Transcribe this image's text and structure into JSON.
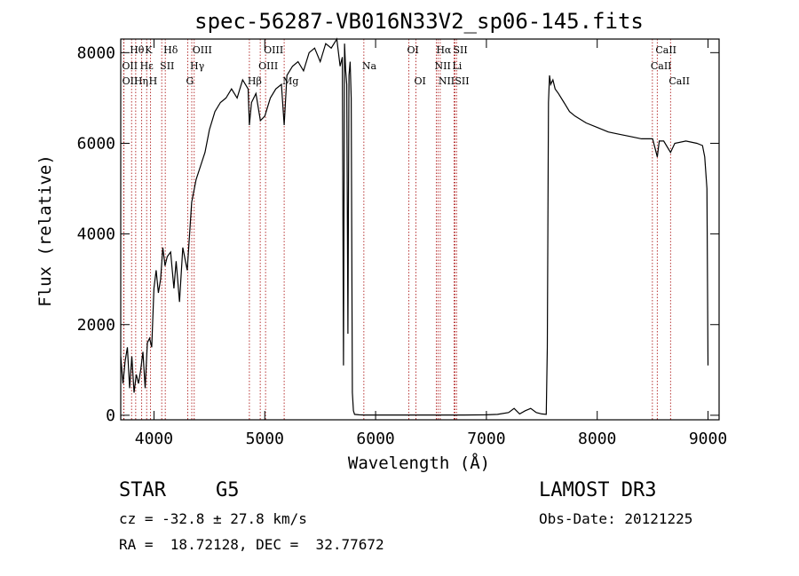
{
  "chart_data": {
    "type": "line",
    "title": "spec-56287-VB016N33V2_sp06-145.fits",
    "xlabel": "Wavelength (Å)",
    "ylabel": "Flux (relative)",
    "xlim": [
      3700,
      9100
    ],
    "ylim": [
      -100,
      8300
    ],
    "xticks": [
      4000,
      5000,
      6000,
      7000,
      8000,
      9000
    ],
    "yticks": [
      0,
      2000,
      4000,
      6000,
      8000
    ],
    "series": [
      {
        "name": "flux",
        "x": [
          3700,
          3720,
          3740,
          3760,
          3780,
          3800,
          3820,
          3840,
          3860,
          3880,
          3900,
          3920,
          3940,
          3960,
          3980,
          4000,
          4020,
          4040,
          4060,
          4080,
          4100,
          4120,
          4150,
          4180,
          4200,
          4230,
          4260,
          4300,
          4340,
          4380,
          4420,
          4460,
          4500,
          4550,
          4600,
          4650,
          4700,
          4750,
          4800,
          4850,
          4861,
          4880,
          4920,
          4960,
          5000,
          5050,
          5100,
          5150,
          5175,
          5200,
          5250,
          5300,
          5350,
          5400,
          5450,
          5500,
          5550,
          5600,
          5650,
          5680,
          5700,
          5710,
          5720,
          5730,
          5740,
          5750,
          5760,
          5770,
          5780,
          5790,
          5800,
          5810,
          5850,
          5900,
          6000,
          6200,
          6400,
          6600,
          6800,
          7000,
          7100,
          7200,
          7250,
          7300,
          7350,
          7400,
          7450,
          7500,
          7540,
          7550,
          7560,
          7570,
          7580,
          7600,
          7620,
          7650,
          7700,
          7750,
          7800,
          7900,
          8000,
          8100,
          8200,
          8300,
          8400,
          8500,
          8542,
          8560,
          8600,
          8662,
          8700,
          8800,
          8900,
          8950,
          8970,
          8990,
          9000
        ],
        "values": [
          1300,
          700,
          1200,
          1500,
          600,
          1300,
          500,
          900,
          700,
          1000,
          1400,
          600,
          1600,
          1700,
          1500,
          2800,
          3200,
          2700,
          3000,
          3700,
          3300,
          3500,
          3600,
          2800,
          3400,
          2500,
          3700,
          3200,
          4700,
          5200,
          5500,
          5800,
          6300,
          6700,
          6900,
          7000,
          7200,
          7000,
          7400,
          7200,
          6400,
          6900,
          7100,
          6500,
          6600,
          7000,
          7200,
          7300,
          6400,
          7500,
          7700,
          7800,
          7600,
          8000,
          8100,
          7800,
          8200,
          8100,
          8300,
          7700,
          7900,
          1100,
          8200,
          7600,
          7300,
          1800,
          7500,
          7800,
          7000,
          500,
          100,
          20,
          10,
          5,
          5,
          5,
          5,
          5,
          5,
          10,
          20,
          60,
          150,
          30,
          100,
          150,
          60,
          30,
          20,
          1500,
          6900,
          7500,
          7300,
          7400,
          7200,
          7100,
          6900,
          6700,
          6600,
          6450,
          6350,
          6250,
          6200,
          6150,
          6100,
          6100,
          5700,
          6050,
          6050,
          5800,
          6000,
          6050,
          6000,
          5950,
          5700,
          5000,
          1100
        ]
      }
    ],
    "lines": [
      {
        "label": "Hθ",
        "wave": 3798,
        "row": 0
      },
      {
        "label": "OII",
        "wave": 3727,
        "row": 1
      },
      {
        "label": "OII",
        "wave": 3729,
        "row": 2
      },
      {
        "label": "Hη",
        "wave": 3835,
        "row": 2
      },
      {
        "label": "Hε",
        "wave": 3889,
        "row": 1
      },
      {
        "label": "K",
        "wave": 3934,
        "row": 0
      },
      {
        "label": "H",
        "wave": 3969,
        "row": 2
      },
      {
        "label": "SII",
        "wave": 4070,
        "row": 1
      },
      {
        "label": "Hδ",
        "wave": 4102,
        "row": 0
      },
      {
        "label": "OIII",
        "wave": 4363,
        "row": 0
      },
      {
        "label": "Hγ",
        "wave": 4341,
        "row": 1
      },
      {
        "label": "G",
        "wave": 4305,
        "row": 2
      },
      {
        "label": "Hβ",
        "wave": 4861,
        "row": 2
      },
      {
        "label": "OIII",
        "wave": 4959,
        "row": 1
      },
      {
        "label": "OIII",
        "wave": 5007,
        "row": 0
      },
      {
        "label": "Mg",
        "wave": 5175,
        "row": 2
      },
      {
        "label": "Na",
        "wave": 5894,
        "row": 1
      },
      {
        "label": "OI",
        "wave": 6300,
        "row": 0
      },
      {
        "label": "OI",
        "wave": 6364,
        "row": 2
      },
      {
        "label": "NII",
        "wave": 6548,
        "row": 1
      },
      {
        "label": "Hα",
        "wave": 6563,
        "row": 0
      },
      {
        "label": "NII",
        "wave": 6583,
        "row": 2
      },
      {
        "label": "SII",
        "wave": 6716,
        "row": 0
      },
      {
        "label": "SII",
        "wave": 6731,
        "row": 2
      },
      {
        "label": "Li",
        "wave": 6708,
        "row": 1
      },
      {
        "label": "CaII",
        "wave": 8542,
        "row": 0
      },
      {
        "label": "CaII",
        "wave": 8498,
        "row": 1
      },
      {
        "label": "CaII",
        "wave": 8662,
        "row": 2
      }
    ]
  },
  "info": {
    "obj_class": "STAR",
    "subclass": "G5",
    "survey": "LAMOST DR3",
    "cz": "cz = -32.8 ± 27.8 km/s",
    "obs_date": "Obs-Date: 20121225",
    "coords": "RA =  18.72128, DEC =  32.77672"
  }
}
